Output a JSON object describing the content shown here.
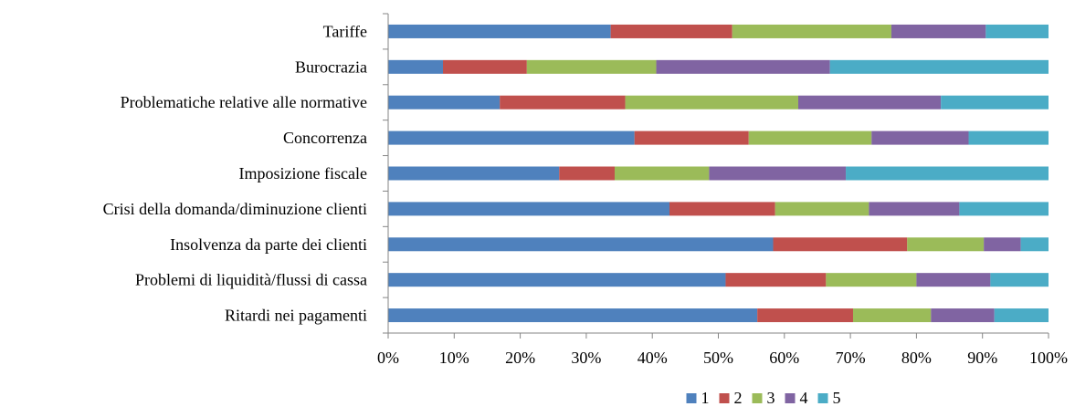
{
  "chart_data": {
    "type": "bar",
    "orientation": "horizontal",
    "stacked": "percent",
    "categories": [
      "Tariffe",
      "Burocrazia",
      "Problematiche relative alle normative",
      "Concorrenza",
      "Imposizione fiscale",
      "Crisi della domanda/diminuzione clienti",
      "Insolvenza da parte dei clienti",
      "Problemi di liquidità/flussi di cassa",
      "Ritardi nei pagamenti"
    ],
    "series": [
      {
        "name": "1",
        "color": "#4F81BD",
        "values": [
          33.7,
          8.3,
          16.9,
          37.3,
          25.9,
          42.6,
          58.3,
          51.1,
          55.9
        ]
      },
      {
        "name": "2",
        "color": "#C0504D",
        "values": [
          18.4,
          12.7,
          19.0,
          17.3,
          8.4,
          16.0,
          20.3,
          15.2,
          14.5
        ]
      },
      {
        "name": "3",
        "color": "#9BBB59",
        "values": [
          24.1,
          19.6,
          26.2,
          18.6,
          14.3,
          14.2,
          11.6,
          13.7,
          11.8
        ]
      },
      {
        "name": "4",
        "color": "#8064A2",
        "values": [
          14.3,
          26.3,
          21.6,
          14.7,
          20.7,
          13.7,
          5.6,
          11.2,
          9.6
        ]
      },
      {
        "name": "5",
        "color": "#4BACC6",
        "values": [
          9.5,
          33.1,
          16.3,
          12.1,
          30.7,
          13.5,
          4.2,
          8.8,
          8.2
        ]
      }
    ],
    "tick_labels": [
      "0%",
      "10%",
      "20%",
      "30%",
      "40%",
      "50%",
      "60%",
      "70%",
      "80%",
      "90%",
      "100%"
    ],
    "xlim": [
      0,
      100
    ],
    "grid": false,
    "legend_position": "bottom",
    "title": "",
    "xlabel": "",
    "ylabel": ""
  }
}
